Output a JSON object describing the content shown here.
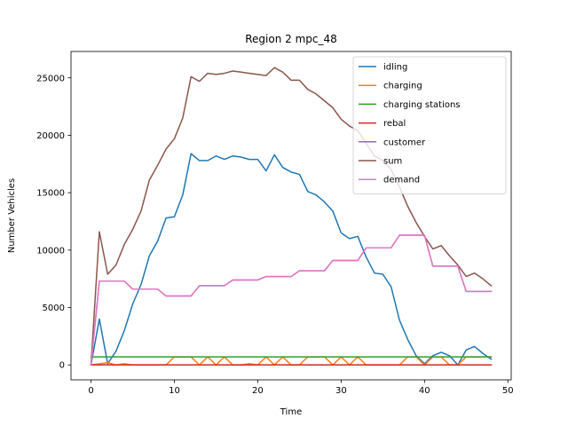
{
  "chart_data": {
    "type": "line",
    "title": "Region 2 mpc_48",
    "xlabel": "Time",
    "ylabel": "Number Vehicles",
    "xlim": [
      -2.4,
      50.4
    ],
    "ylim": [
      -1300,
      27300
    ],
    "xticks": [
      0,
      10,
      20,
      30,
      40,
      50
    ],
    "yticks": [
      0,
      5000,
      10000,
      15000,
      20000,
      25000
    ],
    "grid": false,
    "legend_position": "top-right",
    "x": [
      0,
      1,
      2,
      3,
      4,
      5,
      6,
      7,
      8,
      9,
      10,
      11,
      12,
      13,
      14,
      15,
      16,
      17,
      18,
      19,
      20,
      21,
      22,
      23,
      24,
      25,
      26,
      27,
      28,
      29,
      30,
      31,
      32,
      33,
      34,
      35,
      36,
      37,
      38,
      39,
      40,
      41,
      42,
      43,
      44,
      45,
      46,
      47,
      48
    ],
    "series": [
      {
        "name": "idling",
        "color": "#1f77b4",
        "values": [
          0,
          4000,
          100,
          1200,
          3000,
          5300,
          7000,
          9500,
          10800,
          12800,
          12900,
          14800,
          18400,
          17800,
          17800,
          18200,
          17900,
          18200,
          18100,
          17900,
          17900,
          16900,
          18300,
          17200,
          16800,
          16600,
          15100,
          14800,
          14200,
          13400,
          11500,
          11000,
          11200,
          9400,
          8000,
          7900,
          6800,
          3900,
          2200,
          800,
          100,
          800,
          1100,
          800,
          0,
          1300,
          1600,
          1000,
          500
        ]
      },
      {
        "name": "charging",
        "color": "#ff7f0e",
        "values": [
          0,
          100,
          200,
          0,
          100,
          0,
          0,
          0,
          0,
          0,
          700,
          700,
          700,
          0,
          700,
          0,
          700,
          0,
          0,
          100,
          0,
          700,
          0,
          700,
          0,
          0,
          700,
          700,
          700,
          0,
          700,
          0,
          700,
          0,
          0,
          0,
          0,
          0,
          700,
          700,
          0,
          700,
          700,
          0,
          0,
          700,
          700,
          700,
          700
        ]
      },
      {
        "name": "charging stations",
        "color": "#2ca02c",
        "values": [
          700,
          700,
          700,
          700,
          700,
          700,
          700,
          700,
          700,
          700,
          700,
          700,
          700,
          700,
          700,
          700,
          700,
          700,
          700,
          700,
          700,
          700,
          700,
          700,
          700,
          700,
          700,
          700,
          700,
          700,
          700,
          700,
          700,
          700,
          700,
          700,
          700,
          700,
          700,
          700,
          700,
          700,
          700,
          700,
          700,
          700,
          700,
          700,
          700
        ]
      },
      {
        "name": "rebal",
        "color": "#d62728",
        "values": [
          0,
          0,
          0,
          0,
          0,
          0,
          0,
          0,
          0,
          0,
          0,
          0,
          0,
          0,
          0,
          0,
          0,
          0,
          0,
          0,
          0,
          0,
          0,
          0,
          0,
          0,
          0,
          0,
          0,
          0,
          0,
          0,
          0,
          0,
          0,
          0,
          0,
          0,
          0,
          0,
          0,
          0,
          0,
          0,
          0,
          0,
          0,
          0,
          0
        ]
      },
      {
        "name": "customer",
        "color": "#9467bd",
        "values": [
          0,
          7300,
          7300,
          7300,
          7300,
          6600,
          6600,
          6600,
          6600,
          6000,
          6000,
          6000,
          6000,
          6900,
          6900,
          6900,
          6900,
          7400,
          7400,
          7400,
          7400,
          7700,
          7700,
          7700,
          7700,
          8200,
          8200,
          8200,
          8200,
          9100,
          9100,
          9100,
          9100,
          10200,
          10200,
          10200,
          10200,
          11300,
          11300,
          11300,
          11300,
          8600,
          8600,
          8600,
          8600,
          6400,
          6400,
          6400,
          6400
        ]
      },
      {
        "name": "sum",
        "color": "#8c564b",
        "values": [
          0,
          11600,
          7900,
          8700,
          10500,
          11800,
          13400,
          16100,
          17400,
          18800,
          19700,
          21500,
          25100,
          24700,
          25400,
          25300,
          25400,
          25600,
          25500,
          25400,
          25300,
          25200,
          25900,
          25500,
          24800,
          24800,
          24000,
          23600,
          23000,
          22400,
          21400,
          20800,
          20400,
          19300,
          18200,
          17800,
          17000,
          15500,
          13800,
          12400,
          11200,
          10100,
          10400,
          9500,
          8700,
          7700,
          8000,
          7500,
          6900
        ]
      },
      {
        "name": "demand",
        "color": "#e377c2",
        "values": [
          0,
          7300,
          7300,
          7300,
          7300,
          6600,
          6600,
          6600,
          6600,
          6000,
          6000,
          6000,
          6000,
          6900,
          6900,
          6900,
          6900,
          7400,
          7400,
          7400,
          7400,
          7700,
          7700,
          7700,
          7700,
          8200,
          8200,
          8200,
          8200,
          9100,
          9100,
          9100,
          9100,
          10200,
          10200,
          10200,
          10200,
          11300,
          11300,
          11300,
          11300,
          8600,
          8600,
          8600,
          8600,
          6400,
          6400,
          6400,
          6400
        ]
      }
    ]
  }
}
